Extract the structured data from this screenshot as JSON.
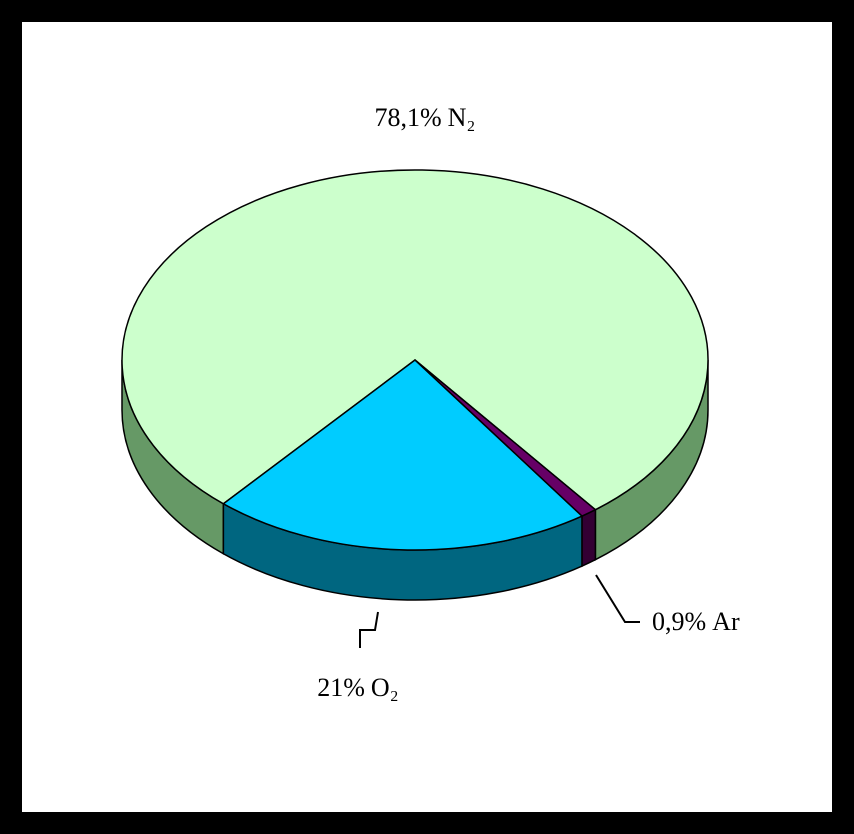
{
  "chart_data": {
    "type": "pie",
    "categories": [
      "N₂",
      "O₂",
      "Ar"
    ],
    "values": [
      78.1,
      21,
      0.9
    ],
    "value_labels": [
      "78,1%",
      "21%",
      "0,9%"
    ],
    "colors": [
      "#ccffcc",
      "#00ccff",
      "#660066"
    ],
    "side_colors": [
      "#669966",
      "#006680",
      "#330033"
    ]
  }
}
